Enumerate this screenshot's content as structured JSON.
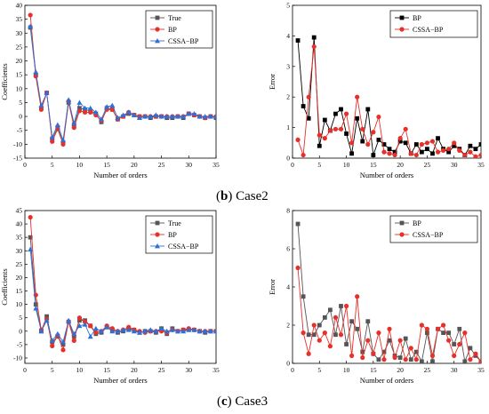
{
  "captions": [
    {
      "letter": "b",
      "text": "Case2"
    },
    {
      "letter": "c",
      "text": "Case3"
    }
  ],
  "colors": {
    "true": "#555555",
    "bp_coef": "#e8302a",
    "cssa": "#2f6fd8",
    "bp_err": "#000000",
    "cssa_err": "#e8302a"
  },
  "chart_data": [
    {
      "type": "line",
      "xlabel": "Number of orders",
      "ylabel": "Coefficients",
      "xlim": [
        0,
        35
      ],
      "ylim": [
        -15,
        40
      ],
      "xticks": [
        0,
        5,
        10,
        15,
        20,
        25,
        30,
        35
      ],
      "yticks": [
        -15,
        -10,
        -5,
        0,
        5,
        10,
        15,
        20,
        25,
        30,
        35,
        40
      ],
      "legend": "top-right",
      "x": [
        1,
        2,
        3,
        4,
        5,
        6,
        7,
        8,
        9,
        10,
        11,
        12,
        13,
        14,
        15,
        16,
        17,
        18,
        19,
        20,
        21,
        22,
        23,
        24,
        25,
        26,
        27,
        28,
        29,
        30,
        31,
        32,
        33,
        34,
        35
      ],
      "series": [
        {
          "name": "True",
          "marker": "square",
          "color": "#555555",
          "values": [
            32,
            15,
            3,
            8.5,
            -8,
            -4,
            -9.5,
            5,
            -3,
            3,
            2.5,
            2,
            1,
            -2,
            3,
            2.5,
            -1,
            0,
            1,
            0.5,
            0,
            0,
            -0.5,
            0,
            0,
            -0.5,
            -0.5,
            0,
            -0.5,
            1,
            0.5,
            0,
            -0.5,
            0,
            -0.5
          ]
        },
        {
          "name": "BP",
          "marker": "circle",
          "color": "#e8302a",
          "values": [
            36.5,
            14.5,
            2.5,
            8.5,
            -9,
            -4.5,
            -10,
            5.5,
            -4,
            2,
            1.5,
            1.5,
            0.5,
            -1.5,
            2.5,
            2.5,
            -1,
            0,
            1.5,
            0.5,
            0,
            0,
            0,
            0,
            0,
            0,
            0,
            0,
            0,
            1,
            0.5,
            0,
            -0.5,
            0,
            0
          ]
        },
        {
          "name": "CSSA−BP",
          "marker": "triangle",
          "color": "#2f6fd8",
          "values": [
            32.5,
            16,
            4,
            8.5,
            -7.5,
            -3,
            -8.5,
            6,
            -2.5,
            5,
            3,
            3,
            1.5,
            -1,
            3.5,
            4,
            -0.5,
            0.5,
            1.5,
            0.5,
            -0.5,
            0,
            0,
            0.5,
            0,
            0,
            0,
            0,
            0,
            1,
            1,
            0,
            0,
            0,
            0
          ]
        }
      ]
    },
    {
      "type": "line",
      "xlabel": "Number of orders",
      "ylabel": "Error",
      "xlim": [
        0,
        35
      ],
      "ylim": [
        0,
        5
      ],
      "xticks": [
        0,
        5,
        10,
        15,
        20,
        25,
        30,
        35
      ],
      "yticks": [
        0,
        1,
        2,
        3,
        4,
        5
      ],
      "legend": "top-right",
      "x": [
        1,
        2,
        3,
        4,
        5,
        6,
        7,
        8,
        9,
        10,
        11,
        12,
        13,
        14,
        15,
        16,
        17,
        18,
        19,
        20,
        21,
        22,
        23,
        24,
        25,
        26,
        27,
        28,
        29,
        30,
        31,
        32,
        33,
        34,
        35
      ],
      "series": [
        {
          "name": "BP",
          "marker": "square",
          "color": "#000000",
          "values": [
            3.85,
            1.7,
            1.3,
            3.95,
            0.4,
            1.25,
            0.9,
            1.45,
            1.6,
            0.8,
            0.15,
            1.3,
            0.55,
            1.6,
            0.1,
            0.6,
            0.45,
            0.3,
            0.2,
            0.55,
            0.5,
            0.15,
            0.45,
            0.2,
            0.3,
            0.15,
            0.65,
            0.3,
            0.2,
            0.4,
            0.3,
            0.1,
            0.4,
            0.3,
            0.45
          ]
        },
        {
          "name": "CSSA−BP",
          "marker": "circle",
          "color": "#e8302a",
          "values": [
            0.6,
            0.1,
            2,
            3.65,
            0.75,
            0.65,
            0.9,
            0.95,
            0.95,
            1.45,
            0.5,
            2,
            0.95,
            0.45,
            0.85,
            1.35,
            0.2,
            0.15,
            0.1,
            0.65,
            0.95,
            0.15,
            0.1,
            0.45,
            0.5,
            0.55,
            0.2,
            0.25,
            0.3,
            0.5,
            0.25,
            0.1,
            0.2,
            0.05,
            0.1
          ]
        }
      ]
    },
    {
      "type": "line",
      "xlabel": "Number of orders",
      "ylabel": "Coefficients",
      "xlim": [
        0,
        35
      ],
      "ylim": [
        -12,
        45
      ],
      "xticks": [
        0,
        5,
        10,
        15,
        20,
        25,
        30,
        35
      ],
      "yticks": [
        -10,
        -5,
        0,
        5,
        10,
        15,
        20,
        25,
        30,
        35,
        40,
        45
      ],
      "legend": "top-right",
      "x": [
        1,
        2,
        3,
        4,
        5,
        6,
        7,
        8,
        9,
        10,
        11,
        12,
        13,
        14,
        15,
        16,
        17,
        18,
        19,
        20,
        21,
        22,
        23,
        24,
        25,
        26,
        27,
        28,
        29,
        30,
        31,
        32,
        33,
        34,
        35
      ],
      "series": [
        {
          "name": "True",
          "marker": "square",
          "color": "#555555",
          "values": [
            35,
            10,
            0,
            5.5,
            -4,
            -2,
            -5,
            3.5,
            -2,
            4,
            4,
            2,
            -1,
            -0.5,
            1.5,
            0.5,
            -0.5,
            0,
            1,
            0.5,
            -0.5,
            0,
            0,
            -0.5,
            1,
            -1,
            1,
            0,
            0.5,
            0.5,
            0.5,
            0,
            -0.5,
            0,
            0
          ]
        },
        {
          "name": "BP",
          "marker": "circle",
          "color": "#e8302a",
          "values": [
            42.5,
            13.5,
            0.5,
            4.5,
            -5.5,
            -1.5,
            -7,
            3.5,
            -3.5,
            5,
            3.5,
            2,
            -0.5,
            0,
            2,
            1,
            0,
            0.5,
            1.5,
            0.5,
            0,
            -0.5,
            0,
            0,
            0,
            -0.5,
            0.5,
            0,
            0.5,
            1,
            0.5,
            0,
            0,
            0,
            0
          ]
        },
        {
          "name": "CSSA−BP",
          "marker": "triangle",
          "color": "#2f6fd8",
          "values": [
            30.5,
            8.5,
            0,
            4,
            -3.5,
            -1,
            -4,
            4,
            -1,
            2,
            2.5,
            -2,
            1,
            0,
            1.5,
            0,
            0,
            0.5,
            0.5,
            0,
            -0.5,
            0,
            0.5,
            0,
            1,
            0,
            0.5,
            0,
            0,
            0.5,
            0.5,
            0,
            0,
            0,
            0
          ]
        }
      ]
    },
    {
      "type": "line",
      "xlabel": "Number of orders",
      "ylabel": "Error",
      "xlim": [
        0,
        35
      ],
      "ylim": [
        0,
        8
      ],
      "xticks": [
        0,
        5,
        10,
        15,
        20,
        25,
        30,
        35
      ],
      "yticks": [
        0,
        2,
        4,
        6,
        8
      ],
      "legend": "top-right",
      "x": [
        1,
        2,
        3,
        4,
        5,
        6,
        7,
        8,
        9,
        10,
        11,
        12,
        13,
        14,
        15,
        16,
        17,
        18,
        19,
        20,
        21,
        22,
        23,
        24,
        25,
        26,
        27,
        28,
        29,
        30,
        31,
        32,
        33,
        34,
        35
      ],
      "series": [
        {
          "name": "BP",
          "marker": "square",
          "color": "#555555",
          "values": [
            7.3,
            3.5,
            1.5,
            1.5,
            2,
            2.4,
            2.8,
            1.5,
            3,
            1,
            2.2,
            1.8,
            0.6,
            2.2,
            0.5,
            0.2,
            0.6,
            1.2,
            0.4,
            0.3,
            1.3,
            0.2,
            0.6,
            0.1,
            1.6,
            0.1,
            1.8,
            1.6,
            1.6,
            1,
            1.8,
            0.1,
            0.8,
            0.4,
            0.1
          ]
        },
        {
          "name": "CSSA−BP",
          "marker": "circle",
          "color": "#e8302a",
          "values": [
            5,
            1.6,
            0.5,
            2,
            1.2,
            1.6,
            0.9,
            2.4,
            1.5,
            3,
            0.4,
            3.5,
            0.3,
            1.2,
            0.5,
            1.6,
            0.2,
            1.8,
            0.3,
            1.2,
            0.2,
            0.8,
            0.2,
            2,
            1.8,
            0.4,
            1.8,
            2,
            1.2,
            0.4,
            1,
            1.6,
            0.2,
            0.5,
            0.1
          ]
        }
      ]
    }
  ]
}
